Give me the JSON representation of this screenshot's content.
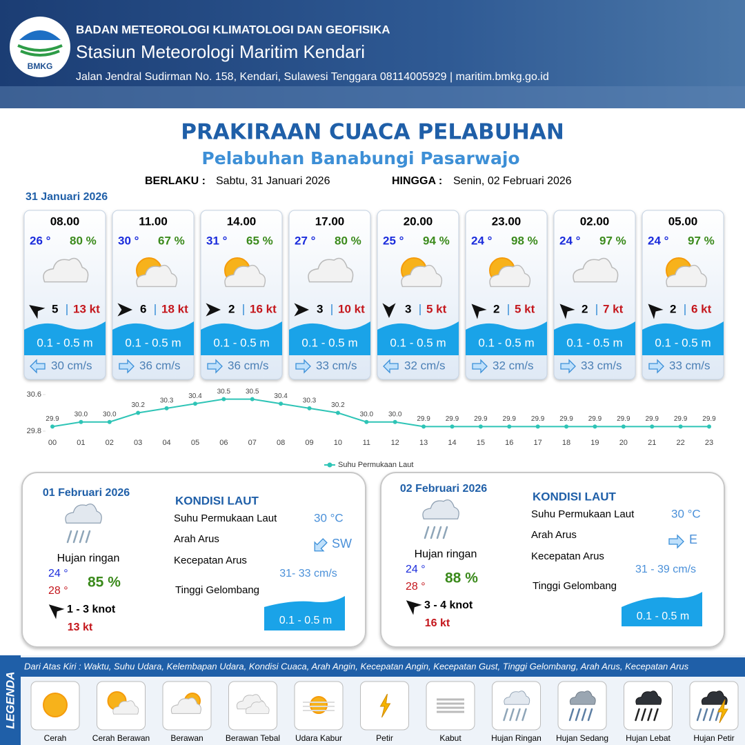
{
  "header": {
    "logo_text": "BMKG",
    "agency": "BADAN METEOROLOGI KLIMATOLOGI DAN GEOFISIKA",
    "station": "Stasiun Meteorologi Maritim Kendari",
    "address": "Jalan Jendral Sudirman No. 158, Kendari, Sulawesi Tenggara  08114005929 | maritim.bmkg.go.id"
  },
  "title": "PRAKIRAAN CUACA PELABUHAN",
  "subtitle": "Pelabuhan Banabungi Pasarwajo",
  "valid_from_label": "BERLAKU :",
  "valid_from": "Sabtu, 31 Januari 2026",
  "valid_to_label": "HINGGA :",
  "valid_to": "Senin, 02 Februari 2026",
  "day1_date": "31 Januari 2026",
  "forecast": [
    {
      "time": "08.00",
      "temp": "26 °",
      "humidity": "80 %",
      "wind": "5",
      "gust": "13 kt",
      "wave": "0.1 - 0.5 m",
      "current": "30 cm/s"
    },
    {
      "time": "11.00",
      "temp": "30 °",
      "humidity": "67 %",
      "wind": "6",
      "gust": "18 kt",
      "wave": "0.1 - 0.5 m",
      "current": "36 cm/s"
    },
    {
      "time": "14.00",
      "temp": "31 °",
      "humidity": "65 %",
      "wind": "2",
      "gust": "16 kt",
      "wave": "0.1 - 0.5 m",
      "current": "36 cm/s"
    },
    {
      "time": "17.00",
      "temp": "27 °",
      "humidity": "80 %",
      "wind": "3",
      "gust": "10 kt",
      "wave": "0.1 - 0.5 m",
      "current": "33 cm/s"
    },
    {
      "time": "20.00",
      "temp": "25 °",
      "humidity": "94 %",
      "wind": "3",
      "gust": "5 kt",
      "wave": "0.1 - 0.5 m",
      "current": "32 cm/s"
    },
    {
      "time": "23.00",
      "temp": "24 °",
      "humidity": "98 %",
      "wind": "2",
      "gust": "5 kt",
      "wave": "0.1 - 0.5 m",
      "current": "32 cm/s"
    },
    {
      "time": "02.00",
      "temp": "24 °",
      "humidity": "97 %",
      "wind": "2",
      "gust": "7 kt",
      "wave": "0.1 - 0.5 m",
      "current": "33 cm/s"
    },
    {
      "time": "05.00",
      "temp": "24 °",
      "humidity": "97 %",
      "wind": "2",
      "gust": "6 kt",
      "wave": "0.1 - 0.5 m",
      "current": "33 cm/s"
    }
  ],
  "chart_data": {
    "type": "line",
    "categories": [
      "00",
      "01",
      "02",
      "03",
      "04",
      "05",
      "06",
      "07",
      "08",
      "09",
      "10",
      "11",
      "12",
      "13",
      "14",
      "15",
      "16",
      "17",
      "18",
      "19",
      "20",
      "21",
      "22",
      "23"
    ],
    "series": [
      {
        "name": "Suhu Permukaan Laut",
        "color": "#2ec4b6",
        "values": [
          29.9,
          30.0,
          30.0,
          30.2,
          30.3,
          30.4,
          30.5,
          30.5,
          30.4,
          30.3,
          30.2,
          30.0,
          30.0,
          29.9,
          29.9,
          29.9,
          29.9,
          29.9,
          29.9,
          29.9,
          29.9,
          29.9,
          29.9,
          29.9
        ],
        "value_labels": [
          "29.9",
          "30.0",
          "30.0",
          "30.2",
          "30.3",
          "30.4",
          "30.5",
          "30.5",
          "30.4",
          "30.3",
          "30.2",
          "30.0",
          "30.0",
          "29.9",
          "29.9",
          "29.9",
          "29.9",
          "29.9",
          "29.9",
          "29.9",
          "29.9",
          "29.9",
          "29.9",
          "29.9"
        ]
      }
    ],
    "ylim": [
      29.8,
      30.6
    ],
    "yticks": [
      29.8,
      30.6
    ],
    "grid": false,
    "legend": "bottom"
  },
  "days": [
    {
      "date": "01 Februari 2026",
      "condition": "Hujan ringan",
      "temp_min": "24 °",
      "temp_max": "28 °",
      "humidity": "85 %",
      "wind": "1  - 3 knot",
      "gust": "13 kt",
      "sea_title": "KONDISI LAUT",
      "sst_label": "Suhu Permukaan Laut",
      "sst": "30 °C",
      "dir_label": "Arah Arus",
      "dir": "SW",
      "speed_label": "Kecepatan Arus",
      "speed": "31- 33 cm/s",
      "wave_label": "Tinggi Gelombang",
      "wave": "0.1 - 0.5 m"
    },
    {
      "date": "02 Februari 2026",
      "condition": "Hujan ringan",
      "temp_min": "24 °",
      "temp_max": "28 °",
      "humidity": "88 %",
      "wind": "3  - 4 knot",
      "gust": "16 kt",
      "sea_title": "KONDISI LAUT",
      "sst_label": "Suhu Permukaan Laut",
      "sst": "30 °C",
      "dir_label": "Arah Arus",
      "dir": "E",
      "speed_label": "Kecepatan Arus",
      "speed": "31 - 39 cm/s",
      "wave_label": "Tinggi Gelombang",
      "wave": "0.1 - 0.5 m"
    }
  ],
  "legend": {
    "title": "LEGENDA",
    "description": "Dari Atas Kiri : Waktu, Suhu Udara, Kelembapan Udara, Kondisi Cuaca, Arah Angin, Kecepatan Angin, Kecepatan Gust, Tinggi Gelombang, Arah Arus, Kecepatan Arus",
    "items": [
      "Cerah",
      "Cerah Berawan",
      "Berawan",
      "Berawan Tebal",
      "Udara Kabur",
      "Petir",
      "Kabut",
      "Hujan Ringan",
      "Hujan Sedang",
      "Hujan Lebat",
      "Hujan Petir"
    ]
  }
}
